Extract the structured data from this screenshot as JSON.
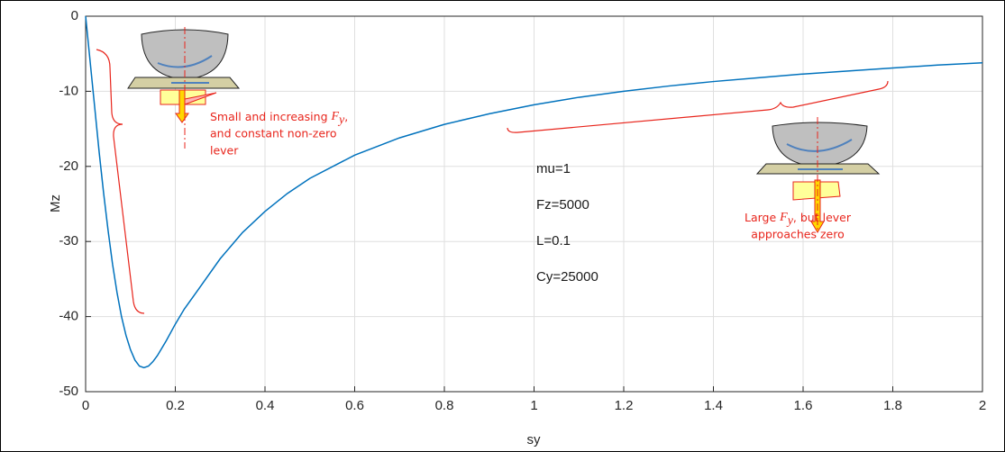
{
  "chart_data": {
    "type": "line",
    "xlabel": "sy",
    "ylabel": "Mz",
    "x": [
      0,
      0.01,
      0.02,
      0.03,
      0.04,
      0.05,
      0.06,
      0.07,
      0.08,
      0.09,
      0.1,
      0.11,
      0.12,
      0.13,
      0.14,
      0.15,
      0.16,
      0.18,
      0.2,
      0.22,
      0.25,
      0.3,
      0.35,
      0.4,
      0.45,
      0.5,
      0.6,
      0.7,
      0.8,
      0.9,
      1.0,
      1.1,
      1.2,
      1.3,
      1.4,
      1.5,
      1.6,
      1.7,
      1.8,
      1.9,
      2.0
    ],
    "values": [
      0,
      -6,
      -12,
      -18,
      -23.5,
      -28.5,
      -33,
      -36.8,
      -40,
      -42.5,
      -44.4,
      -45.8,
      -46.6,
      -46.8,
      -46.6,
      -46,
      -45.2,
      -43.2,
      -41,
      -39,
      -36.5,
      -32.3,
      -28.8,
      -26,
      -23.6,
      -21.6,
      -18.5,
      -16.2,
      -14.4,
      -13,
      -11.8,
      -10.8,
      -10,
      -9.3,
      -8.7,
      -8.2,
      -7.7,
      -7.3,
      -6.9,
      -6.5,
      -6.2
    ],
    "color": "#0072bd",
    "xlim": [
      0,
      2
    ],
    "ylim": [
      -50,
      0
    ],
    "xticks": [
      0,
      0.2,
      0.4,
      0.6,
      0.8,
      1,
      1.2,
      1.4,
      1.6,
      1.8,
      2
    ],
    "yticks": [
      0,
      -10,
      -20,
      -30,
      -40,
      -50
    ],
    "grid": true,
    "params": [
      "mu=1",
      "Fz=5000",
      "L=0.1",
      "Cy=25000"
    ],
    "left_note": [
      {
        "before": "Small and increasing ",
        "symbol": "F",
        "subscript": "y",
        "after": ","
      },
      "and constant non-zero",
      "lever"
    ],
    "right_note": [
      {
        "before": "Large ",
        "symbol": "F",
        "subscript": "y",
        "after": ", but lever"
      },
      "approaches zero"
    ]
  }
}
